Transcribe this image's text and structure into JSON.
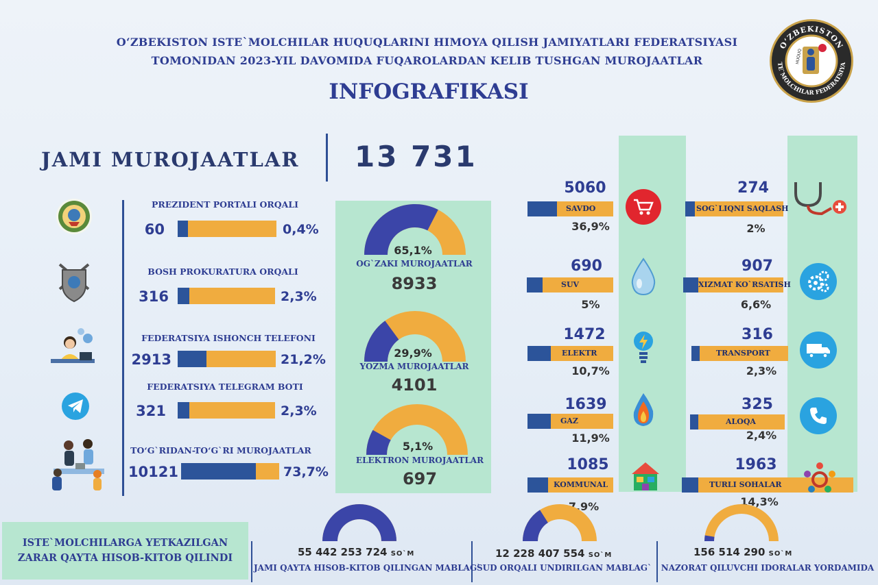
{
  "header": {
    "line1": "O‘ZBEKISTON ISTE`MOLCHILAR  HUQUQLARINI HIMOYA QILISH JAMIYATLARI FEDERATSIYASI",
    "line2": "TOMONIDAN 2023-YIL DAVOMIDA FUQAROLARDAN KELIB TUSHGAN MUROJAATLAR",
    "title": "INFOGRAFIKASI"
  },
  "logo": {
    "ring_top": "O‘ZBEKISTON",
    "ring_bottom": "ISTE`MOLCHILAR FEDERATSIYASI",
    "inner": "HUQUQ",
    "ring_color": "#2a2a2a",
    "accent": "#c9a24a"
  },
  "total": {
    "label": "JAMI MUROJAATLAR",
    "value": "13 731"
  },
  "channels": [
    {
      "label": "PREZIDENT PORTALI ORQALI",
      "count": "60",
      "percent_text": "0,4%",
      "percent": 0.4,
      "icon": "state-emblem-icon"
    },
    {
      "label": "BOSH PROKURATURA ORQALI",
      "count": "316",
      "percent_text": "2,3%",
      "percent": 2.3,
      "icon": "prosecutor-shield-icon"
    },
    {
      "label": "FEDERATSIYA ISHONCH TELEFONI",
      "count": "2913",
      "percent_text": "21,2%",
      "percent": 21.2,
      "icon": "call-center-operator-icon"
    },
    {
      "label": "FEDERATSIYA TELEGRAM BOTI",
      "count": "321",
      "percent_text": "2,3%",
      "percent": 2.3,
      "icon": "telegram-icon"
    },
    {
      "label": "TO‘G`RIDAN-TO‘G`RI MUROJAATLAR",
      "count": "10121",
      "percent_text": "73,7%",
      "percent": 73.7,
      "icon": "office-meeting-icon"
    }
  ],
  "types": [
    {
      "label": "OG`ZAKI MUROJAATLAR",
      "value": "8933",
      "percent_text": "65,1%",
      "percent": 65.1
    },
    {
      "label": "YOZMA MUROJAATLAR",
      "value": "4101",
      "percent_text": "29,9%",
      "percent": 29.9
    },
    {
      "label": "ELEKTRON MUROJAATLAR",
      "value": "697",
      "percent_text": "5,1%",
      "percent": 5.1
    }
  ],
  "sectors_left": [
    {
      "label": "SAVDO",
      "count": "5060",
      "percent_text": "36,9%",
      "percent": 36.9,
      "icon": "shopping-cart-icon"
    },
    {
      "label": "SUV",
      "count": "690",
      "percent_text": "5%",
      "percent": 5.0,
      "icon": "water-drop-icon"
    },
    {
      "label": "ELEKTR",
      "count": "1472",
      "percent_text": "10,7%",
      "percent": 10.7,
      "icon": "light-bulb-icon"
    },
    {
      "label": "GAZ",
      "count": "1639",
      "percent_text": "11,9%",
      "percent": 11.9,
      "icon": "gas-flame-icon"
    },
    {
      "label": "KOMMUNAL",
      "count": "1085",
      "percent_text": "7,9%",
      "percent": 7.9,
      "icon": "utility-house-icon"
    }
  ],
  "sectors_right": [
    {
      "label": "SOG`LIQNI SAQLASH",
      "count": "274",
      "percent_text": "2%",
      "percent": 2.0,
      "icon": "stethoscope-icon"
    },
    {
      "label": "XIZMAT KO`RSATISH",
      "count": "907",
      "percent_text": "6,6%",
      "percent": 6.6,
      "icon": "gears-icon"
    },
    {
      "label": "TRANSPORT",
      "count": "316",
      "percent_text": "2,3%",
      "percent": 2.3,
      "icon": "truck-icon"
    },
    {
      "label": "ALOQA",
      "count": "325",
      "percent_text": "2,4%",
      "percent": 2.4,
      "icon": "phone-icon"
    },
    {
      "label": "TURLI SOHALAR",
      "count": "1963",
      "percent_text": "14,3%",
      "percent": 14.3,
      "icon": "people-circle-icon"
    }
  ],
  "compensation": {
    "box_text_1": "ISTE`MOLCHILARGA YETKAZILGAN",
    "box_text_2": "ZARAR QAYTA HISOB-KITOB QILINDI",
    "currency": "SO`M",
    "items": [
      {
        "amount": "55 442 253 724",
        "caption": "JAMI QAYTA HISOB-KITOB QILINGAN MABLAG`",
        "share": 1.0
      },
      {
        "amount": "12 228 407 554",
        "caption": "SUD ORQALI UNDIRILGAN MABLAG`",
        "share": 0.22
      },
      {
        "amount": "156 514 290",
        "caption": "NAZORAT QILUVCHI IDORALAR YORDAMIDA",
        "share": 0.05
      }
    ]
  },
  "colors": {
    "navy": "#2e3d92",
    "bar_blue": "#2c549a",
    "orange": "#f0ac3f",
    "mint": "#b7e6d0",
    "gauge_blue": "#3b45a8"
  },
  "chart_data": [
    {
      "type": "bar",
      "categories": [
        "PREZIDENT PORTALI ORQALI",
        "BOSH PROKURATURA ORQALI",
        "FEDERATSIYA ISHONCH TELEFONI",
        "FEDERATSIYA TELEGRAM BOTI",
        "TO‘G`RIDAN-TO‘G`RI MUROJAATLAR"
      ],
      "values": [
        60,
        316,
        2913,
        321,
        10121
      ],
      "percent": [
        0.4,
        2.3,
        21.2,
        2.3,
        73.7
      ]
    },
    {
      "type": "pie",
      "categories": [
        "OG`ZAKI MUROJAATLAR",
        "YOZMA MUROJAATLAR",
        "ELEKTRON MUROJAATLAR"
      ],
      "values": [
        8933,
        4101,
        697
      ],
      "percent": [
        65.1,
        29.9,
        5.1
      ]
    },
    {
      "type": "bar",
      "categories": [
        "SAVDO",
        "SUV",
        "ELEKTR",
        "GAZ",
        "KOMMUNAL",
        "SOG`LIQNI SAQLASH",
        "XIZMAT KO`RSATISH",
        "TRANSPORT",
        "ALOQA",
        "TURLI SOHALAR"
      ],
      "values": [
        5060,
        690,
        1472,
        1639,
        1085,
        274,
        907,
        316,
        325,
        1963
      ],
      "percent": [
        36.9,
        5,
        10.7,
        11.9,
        7.9,
        2,
        6.6,
        2.3,
        2.4,
        14.3
      ]
    }
  ]
}
